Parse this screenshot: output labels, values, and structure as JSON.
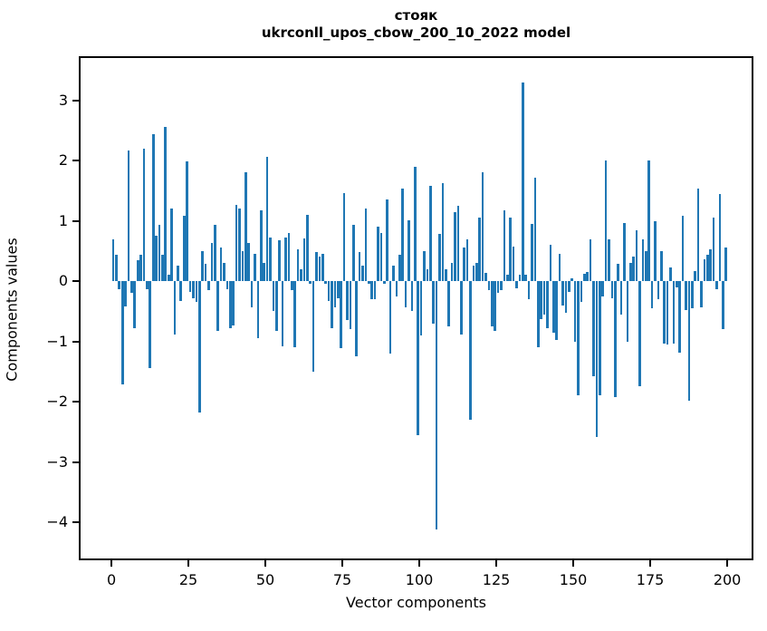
{
  "figure": {
    "title_line1": "стояк",
    "title_line2": "ukrconll_upos_cbow_200_10_2022 model",
    "background_color": "#ffffff",
    "text_color": "#000000"
  },
  "chart_data": {
    "type": "bar",
    "title": "стояк",
    "subtitle": "ukrconll_upos_cbow_200_10_2022 model",
    "xlabel": "Vector components",
    "ylabel": "Components values",
    "bar_color": "#1f77b4",
    "grid": false,
    "legend": null,
    "x_start_index": 0,
    "n_bars": 200,
    "xlim": [
      -10.6,
      208.5
    ],
    "ylim": [
      -4.63,
      3.73
    ],
    "xticks": [
      0,
      25,
      50,
      75,
      100,
      125,
      150,
      175,
      200
    ],
    "yticks": [
      3,
      2,
      1,
      0,
      -1,
      -2,
      -3,
      -4
    ],
    "values": [
      0.7,
      0.43,
      -0.13,
      -1.72,
      -0.42,
      2.17,
      -0.2,
      -0.78,
      0.35,
      0.43,
      2.2,
      -0.13,
      -1.45,
      2.44,
      0.75,
      0.93,
      0.44,
      2.56,
      0.1,
      1.2,
      -0.88,
      0.25,
      -0.33,
      1.08,
      1.98,
      -0.18,
      -0.28,
      -0.35,
      -2.18,
      0.5,
      0.28,
      -0.15,
      0.63,
      0.93,
      -0.83,
      0.55,
      0.3,
      -0.14,
      -0.78,
      -0.74,
      1.26,
      1.2,
      0.5,
      1.8,
      0.63,
      -0.43,
      0.45,
      -0.95,
      1.18,
      0.3,
      2.06,
      0.73,
      -0.5,
      -0.83,
      0.68,
      -1.08,
      0.73,
      0.8,
      -0.15,
      -1.09,
      0.53,
      0.2,
      0.71,
      1.1,
      -0.05,
      -1.5,
      0.48,
      0.4,
      0.45,
      -0.05,
      -0.33,
      -0.78,
      -0.43,
      -0.28,
      -1.11,
      1.46,
      -0.65,
      -0.8,
      0.93,
      -1.25,
      0.48,
      0.25,
      1.21,
      -0.05,
      -0.3,
      -0.3,
      0.9,
      0.8,
      -0.05,
      1.35,
      -1.2,
      0.25,
      -0.25,
      0.43,
      1.53,
      -0.43,
      1.01,
      -0.5,
      1.9,
      -2.55,
      -0.9,
      0.5,
      0.2,
      1.58,
      -0.7,
      -4.12,
      0.78,
      1.63,
      0.2,
      -0.75,
      0.3,
      1.15,
      1.25,
      -0.88,
      0.55,
      0.7,
      -2.3,
      0.25,
      0.3,
      1.05,
      1.8,
      0.13,
      -0.15,
      -0.75,
      -0.83,
      -0.2,
      -0.15,
      1.17,
      0.1,
      1.05,
      0.57,
      -0.12,
      0.1,
      3.29,
      0.1,
      -0.3,
      0.95,
      1.72,
      -1.1,
      -0.63,
      -0.55,
      -0.78,
      0.6,
      -0.85,
      -0.97,
      0.45,
      -0.4,
      -0.53,
      -0.18,
      0.05,
      -1.0,
      -1.9,
      -0.34,
      0.12,
      0.15,
      0.7,
      -1.58,
      -2.58,
      -1.9,
      -0.25,
      2.0,
      0.7,
      -0.28,
      -1.93,
      0.28,
      -0.55,
      0.96,
      -1.0,
      0.3,
      0.4,
      0.85,
      -1.75,
      0.7,
      0.5,
      2.0,
      -0.45,
      1.0,
      -0.3,
      0.5,
      -1.03,
      -1.05,
      0.23,
      -1.04,
      -0.1,
      -1.18,
      1.08,
      -0.48,
      -1.98,
      -0.45,
      0.16,
      1.53,
      -0.43,
      0.36,
      0.43,
      0.53,
      1.05,
      -0.13,
      1.45,
      -0.8,
      0.55
    ]
  }
}
